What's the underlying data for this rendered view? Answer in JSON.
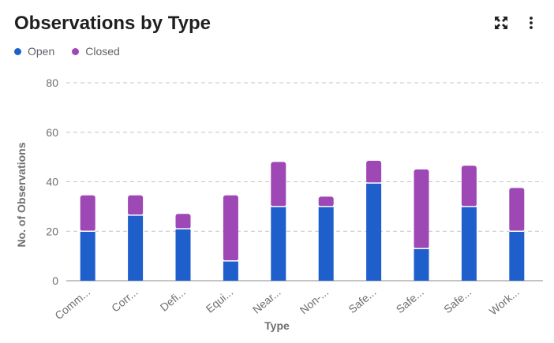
{
  "header": {
    "title": "Observations by Type",
    "expand_icon": "expand-icon",
    "menu_icon": "more-vertical-icon"
  },
  "legend": [
    {
      "label": "Open",
      "color": "#1f5fcc"
    },
    {
      "label": "Closed",
      "color": "#9e48b5"
    }
  ],
  "chart_data": {
    "type": "bar",
    "stacked": true,
    "categories": [
      "Comm...",
      "Corr...",
      "Defi...",
      "Equi...",
      "Near...",
      "Non-...",
      "Safe...",
      "Safe...",
      "Safe...",
      "Work..."
    ],
    "series": [
      {
        "name": "Open",
        "color": "#1f5fcc",
        "values": [
          20,
          26.5,
          21,
          8,
          30,
          30,
          39.5,
          13,
          30,
          20
        ]
      },
      {
        "name": "Closed",
        "color": "#9e48b5",
        "values": [
          14.5,
          8,
          6,
          26.5,
          18,
          4,
          9,
          32,
          16.5,
          17.5
        ]
      }
    ],
    "xlabel": "Type",
    "ylabel": "No. of Observations",
    "ylim": [
      0,
      80
    ],
    "yticks": [
      0,
      20,
      40,
      60,
      80
    ],
    "grid": true,
    "legend_position": "top-left"
  }
}
